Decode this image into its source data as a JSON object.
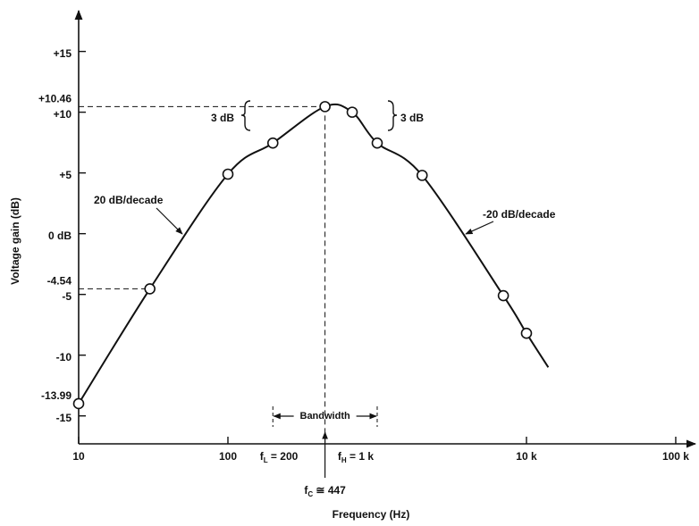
{
  "chart_data": {
    "type": "line",
    "log_x": true,
    "xlabel": "Frequency (Hz)",
    "ylabel": "Voltage gain (dB)",
    "xlim": [
      10,
      130000
    ],
    "ylim": [
      -17.3,
      18.5
    ],
    "xticks": [
      10,
      100,
      {
        "value": 10000,
        "label": "10 k"
      },
      {
        "value": 100000,
        "label": "100 k"
      }
    ],
    "yticks": [
      {
        "value": 15,
        "label": "+15"
      },
      {
        "value": 10,
        "label": "+10"
      },
      {
        "value": 5,
        "label": "+5"
      },
      {
        "value": 0,
        "label": "0 dB"
      },
      -5,
      -10,
      -15
    ],
    "color": "#111111",
    "points": {
      "x": [
        10,
        30,
        100,
        200,
        447,
        680,
        1000,
        2000,
        7000,
        10000
      ],
      "values": [
        -13.99,
        -4.54,
        4.9,
        7.46,
        10.46,
        10,
        7.46,
        4.8,
        -5.1,
        -8.2
      ]
    },
    "curve_end": {
      "x": 14000,
      "y": -11
    },
    "reference_lines": [
      {
        "value": 10.46,
        "label": "+10.46"
      },
      {
        "value": -4.54,
        "label": "-4.54"
      },
      {
        "value": -13.99,
        "label": "-13.99"
      }
    ],
    "annotations": {
      "left_3db": "3 dB",
      "right_3db": "3 dB",
      "rise": "20 dB/decade",
      "fall": "-20 dB/decade",
      "bandwidth": {
        "label": "Bandwidth",
        "from": 200,
        "to": 1000
      },
      "f_low": {
        "symbol": "f",
        "subscript": "L",
        "text": " = 200"
      },
      "f_high": {
        "symbol": "f",
        "subscript": "H",
        "text": " = 1 k"
      },
      "f_center": {
        "symbol": "f",
        "subscript": "C",
        "text": " ≅ 447",
        "value": 447
      }
    }
  }
}
